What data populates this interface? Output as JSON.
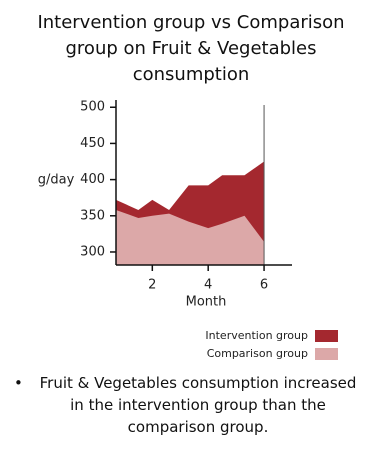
{
  "chart_data": {
    "type": "area",
    "title": "Intervention group vs Comparison group on Fruit & Vegetables consumption",
    "x_label": "Month",
    "y_label": "g/day",
    "x": [
      0.7,
      1.5,
      2,
      2.6,
      3.3,
      4,
      4.5,
      5.3,
      6
    ],
    "series": [
      {
        "name": "Intervention group",
        "color": "#a4282f",
        "values": [
          372,
          358,
          372,
          358,
          392,
          392,
          406,
          406,
          425
        ]
      },
      {
        "name": "Comparison group",
        "color": "#dca8a8",
        "values": [
          358,
          347,
          350,
          353,
          342,
          333,
          339,
          350,
          314
        ]
      }
    ],
    "xlim": [
      0.7,
      7
    ],
    "xticks": [
      2,
      4,
      6
    ],
    "ylim": [
      282,
      510
    ],
    "yticks": [
      300,
      350,
      400,
      450,
      500
    ],
    "legend": "bottom-right",
    "note": "Fruit & Vegetables consumption increased in the intervention group than the comparison group."
  }
}
